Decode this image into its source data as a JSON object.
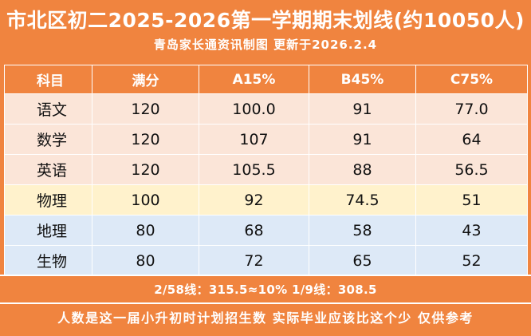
{
  "header": {
    "title": "市北区初二2025-2026第一学期期末划线(约10050人)",
    "subtitle": "青岛家长通资讯制图 更新于2026.2.4"
  },
  "table": {
    "columns": [
      "科目",
      "满分",
      "A15%",
      "B45%",
      "C75%"
    ],
    "rows": [
      {
        "subject": "语文",
        "full": "120",
        "a": "100.0",
        "b": "91",
        "c": "77.0"
      },
      {
        "subject": "数学",
        "full": "120",
        "a": "107",
        "b": "91",
        "c": "64"
      },
      {
        "subject": "英语",
        "full": "120",
        "a": "105.5",
        "b": "88",
        "c": "56.5"
      },
      {
        "subject": "物理",
        "full": "100",
        "a": "92",
        "b": "74.5",
        "c": "51"
      },
      {
        "subject": "地理",
        "full": "80",
        "a": "68",
        "b": "58",
        "c": "43"
      },
      {
        "subject": "生物",
        "full": "80",
        "a": "72",
        "b": "65",
        "c": "52"
      }
    ]
  },
  "footer": {
    "line_note": "2/58线：315.5≈10% 1/9线：308.5",
    "disclaimer": "人数是这一届小升初时计划招生数 实际毕业应该比这个少 仅供参考"
  },
  "colors": {
    "accent": "#f0843f",
    "row_pink": "#fbe5d8",
    "row_yellow": "#fff2cc",
    "row_blue": "#dde9f7"
  }
}
